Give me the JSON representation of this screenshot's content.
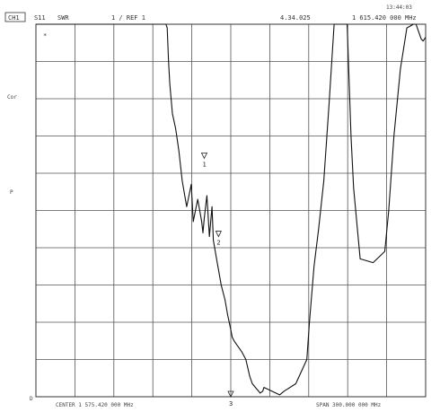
{
  "header": {
    "channel": "CH1",
    "param": "S11",
    "format": "SWR",
    "scale": "1 / REF 1",
    "marker_value": "4.34.025",
    "marker_freq": "1 615.420 000 MHz",
    "timestamp": "13:44:03"
  },
  "side_labels": {
    "marker_star": "*",
    "cor": "Cor",
    "p": "P",
    "bottom_left": "D"
  },
  "footer": {
    "center": "CENTER 1 575.420 000 MHz",
    "span": "SPAN 300.000 000 MHz"
  },
  "markers": [
    {
      "label": "1",
      "x": 1555.0,
      "y": 7.4
    },
    {
      "label": "2",
      "x": 1566.0,
      "y": 5.3
    },
    {
      "label": "3",
      "x": 1575.4,
      "y": 1.0
    }
  ],
  "chart_data": {
    "type": "line",
    "xlim": [
      1425.42,
      1725.42
    ],
    "ylim": [
      1,
      11
    ],
    "grid": true,
    "series": [
      {
        "x": [
          1425.42,
          1467.0,
          1525.5,
          1526.5,
          1527.5,
          1528.5,
          1530.5,
          1533.0,
          1535.5,
          1538.0,
          1541.5,
          1545.0,
          1546.5,
          1550.0,
          1553.0,
          1554.0,
          1555.0,
          1557.0,
          1559.0,
          1561.0,
          1562.0,
          1565.0,
          1566.0,
          1568.0,
          1571.0,
          1573.0,
          1575.4,
          1576.5,
          1578.0,
          1580.0,
          1584.0,
          1587.0,
          1590.0,
          1592.0,
          1598.0,
          1600.0,
          1601.0,
          1613.0,
          1616.5,
          1625.5,
          1634.0,
          1636.0,
          1639.5,
          1643.0,
          1647.0,
          1651.0,
          1655.0,
          1665.0,
          1668.0,
          1670.0,
          1675.0,
          1685.0,
          1694.0,
          1697.0,
          1701.0,
          1706.0,
          1711.0,
          1716.0,
          1718.0
        ],
        "y": [
          11,
          11,
          11,
          10.9,
          10.0,
          9.4,
          8.6,
          8.2,
          7.6,
          6.8,
          6.1,
          6.7,
          5.7,
          6.3,
          5.7,
          5.4,
          5.8,
          6.4,
          5.3,
          6.1,
          5.2,
          4.6,
          4.4,
          4.0,
          3.6,
          3.2,
          2.8,
          2.6,
          2.5,
          2.4,
          2.2,
          2.0,
          1.55,
          1.35,
          1.1,
          1.15,
          1.25,
          1.05,
          1.15,
          1.35,
          2.0,
          3.0,
          4.5,
          5.5,
          6.8,
          8.8,
          11,
          11,
          8.0,
          6.6,
          4.7,
          4.6,
          4.9,
          6.0,
          8.0,
          9.8,
          10.9,
          11,
          11
        ]
      },
      {
        "x": [
          1718.0,
          1720.0,
          1722.0,
          1723.5,
          1725.42
        ],
        "y": [
          11,
          10.8,
          10.6,
          10.55,
          10.65
        ]
      }
    ]
  }
}
